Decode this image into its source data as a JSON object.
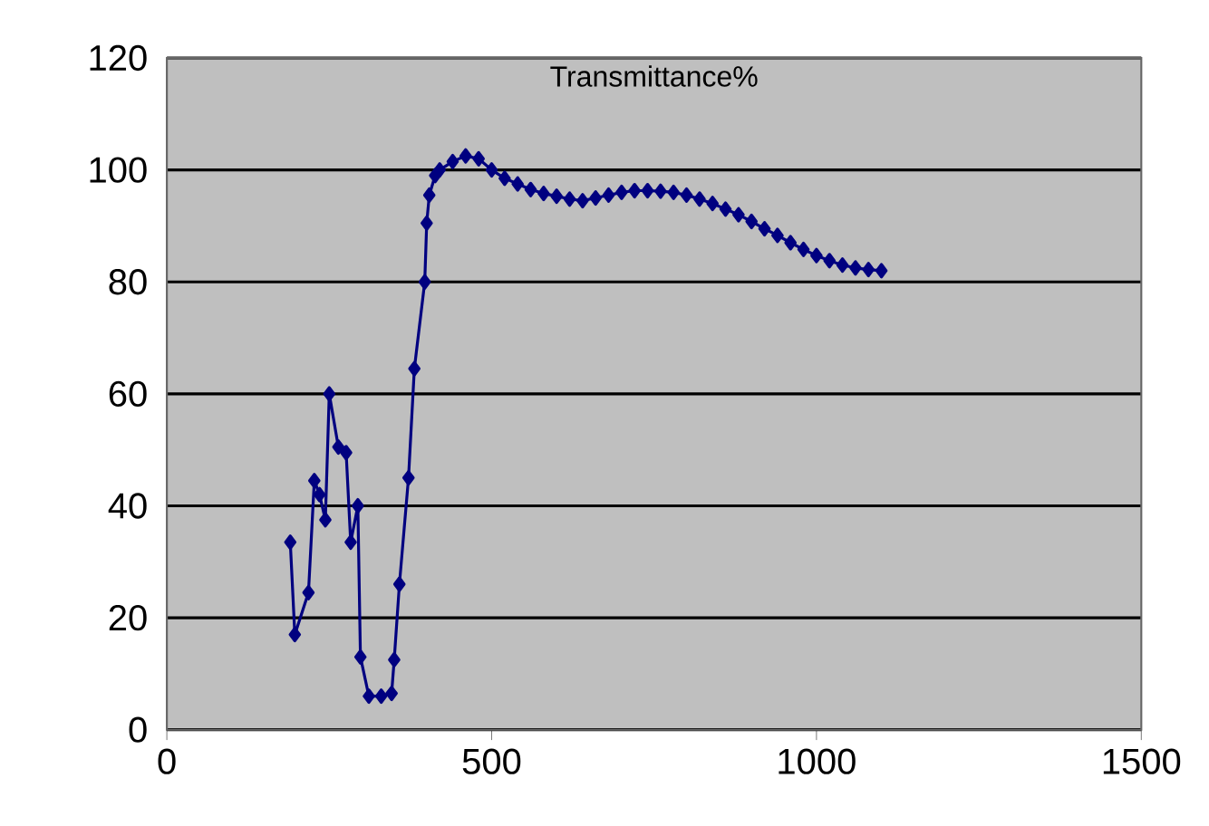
{
  "chart_data": {
    "type": "line",
    "title": "Transmittance%",
    "x": [
      190,
      197,
      218,
      227,
      235,
      244,
      250,
      264,
      276,
      283,
      294,
      298,
      311,
      330,
      346,
      350,
      358,
      372,
      381,
      397,
      400,
      404,
      413,
      420,
      440,
      460,
      480,
      500,
      520,
      540,
      560,
      580,
      600,
      620,
      640,
      660,
      680,
      700,
      720,
      740,
      760,
      780,
      800,
      820,
      840,
      860,
      880,
      900,
      920,
      940,
      960,
      980,
      1000,
      1020,
      1040,
      1060,
      1080,
      1100
    ],
    "series": [
      {
        "color": "#000080",
        "values": [
          33.5,
          17,
          24.5,
          44.5,
          42,
          37.5,
          60,
          50.5,
          49.5,
          33.5,
          40,
          13,
          6,
          6,
          6.5,
          12.5,
          26,
          45,
          64.5,
          80,
          90.5,
          95.5,
          99,
          100,
          101.5,
          102.5,
          102,
          100,
          98.5,
          97.5,
          96.5,
          95.8,
          95.3,
          94.8,
          94.5,
          95,
          95.5,
          96,
          96.3,
          96.3,
          96.2,
          96,
          95.5,
          94.8,
          94,
          93,
          92,
          90.8,
          89.5,
          88.3,
          87,
          85.8,
          84.7,
          83.8,
          83,
          82.5,
          82.2,
          82
        ]
      }
    ],
    "xlim": [
      0,
      1500
    ],
    "ylim": [
      0,
      120
    ],
    "xticks": [
      0,
      500,
      1000,
      1500
    ],
    "yticks": [
      0,
      20,
      40,
      60,
      80,
      100,
      120
    ],
    "grid": "y",
    "marker": "diamond",
    "line_style": "solid"
  }
}
